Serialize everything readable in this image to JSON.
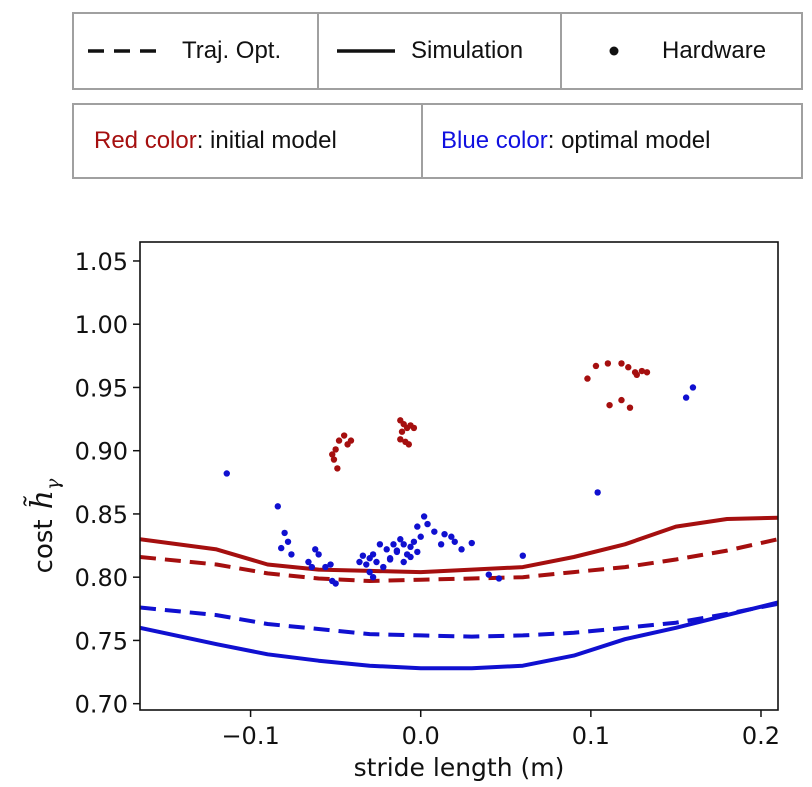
{
  "legend": {
    "items": [
      {
        "label": "Traj. Opt.",
        "style": "dashed"
      },
      {
        "label": "Simulation",
        "style": "solid"
      },
      {
        "label": "Hardware",
        "style": "dot"
      }
    ],
    "color_key": {
      "red_word": "Red color",
      "red_rest": ": initial model",
      "blue_word": "Blue color",
      "blue_rest": ": optimal model"
    }
  },
  "colors": {
    "initial": "#a50f0f",
    "optimal": "#1010d0",
    "text_red": "#a50f0f",
    "text_blue": "#1010e0"
  },
  "chart_data": {
    "type": "line",
    "title": "",
    "xlabel": "stride length (m)",
    "ylabel_prefix": "cost",
    "ylabel_symbol": "h̃",
    "ylabel_subscript": "γ",
    "xlim": [
      -0.165,
      0.21
    ],
    "ylim": [
      0.695,
      1.065
    ],
    "xticks": [
      -0.1,
      0.0,
      0.1,
      0.2
    ],
    "xtick_labels": [
      "−0.1",
      "0.0",
      "0.1",
      "0.2"
    ],
    "yticks": [
      0.7,
      0.75,
      0.8,
      0.85,
      0.9,
      0.95,
      1.0,
      1.05
    ],
    "ytick_labels": [
      "0.70",
      "0.75",
      "0.80",
      "0.85",
      "0.90",
      "0.95",
      "1.00",
      "1.05"
    ],
    "series": [
      {
        "name": "Simulation (initial model)",
        "model": "initial",
        "style": "solid",
        "x": [
          -0.165,
          -0.12,
          -0.09,
          -0.06,
          -0.03,
          0.0,
          0.03,
          0.06,
          0.09,
          0.12,
          0.15,
          0.18,
          0.21
        ],
        "y": [
          0.83,
          0.822,
          0.81,
          0.806,
          0.805,
          0.804,
          0.806,
          0.808,
          0.816,
          0.826,
          0.84,
          0.846,
          0.847
        ]
      },
      {
        "name": "Traj. Opt. (initial model)",
        "model": "initial",
        "style": "dashed",
        "x": [
          -0.165,
          -0.12,
          -0.09,
          -0.06,
          -0.03,
          0.0,
          0.03,
          0.06,
          0.09,
          0.12,
          0.15,
          0.18,
          0.21
        ],
        "y": [
          0.816,
          0.81,
          0.803,
          0.799,
          0.797,
          0.798,
          0.799,
          0.8,
          0.804,
          0.808,
          0.814,
          0.821,
          0.83
        ]
      },
      {
        "name": "Traj. Opt. (optimal model)",
        "model": "optimal",
        "style": "dashed",
        "x": [
          -0.165,
          -0.12,
          -0.09,
          -0.06,
          -0.03,
          0.0,
          0.03,
          0.06,
          0.09,
          0.12,
          0.15,
          0.18,
          0.21
        ],
        "y": [
          0.776,
          0.77,
          0.763,
          0.759,
          0.755,
          0.754,
          0.753,
          0.754,
          0.756,
          0.76,
          0.764,
          0.771,
          0.779
        ]
      },
      {
        "name": "Simulation (optimal model)",
        "model": "optimal",
        "style": "solid",
        "x": [
          -0.165,
          -0.12,
          -0.09,
          -0.06,
          -0.03,
          0.0,
          0.03,
          0.06,
          0.09,
          0.12,
          0.15,
          0.18,
          0.21
        ],
        "y": [
          0.76,
          0.747,
          0.739,
          0.734,
          0.73,
          0.728,
          0.728,
          0.73,
          0.738,
          0.751,
          0.76,
          0.77,
          0.78
        ]
      },
      {
        "name": "Hardware (initial model)",
        "model": "initial",
        "style": "dot",
        "x": [
          -0.052,
          -0.05,
          -0.048,
          -0.045,
          -0.043,
          -0.041,
          -0.051,
          -0.049,
          -0.012,
          -0.01,
          -0.008,
          -0.006,
          -0.004,
          -0.011,
          -0.009,
          -0.007,
          -0.012,
          0.098,
          0.103,
          0.11,
          0.118,
          0.122,
          0.126,
          0.13,
          0.111,
          0.118,
          0.123,
          0.127,
          0.133
        ],
        "y": [
          0.897,
          0.901,
          0.908,
          0.912,
          0.905,
          0.908,
          0.893,
          0.886,
          0.924,
          0.921,
          0.918,
          0.92,
          0.918,
          0.915,
          0.907,
          0.905,
          0.909,
          0.957,
          0.967,
          0.969,
          0.969,
          0.966,
          0.962,
          0.963,
          0.936,
          0.94,
          0.934,
          0.96,
          0.962
        ]
      },
      {
        "name": "Hardware (optimal model)",
        "model": "optimal",
        "style": "dot",
        "x": [
          -0.114,
          -0.084,
          -0.082,
          -0.08,
          -0.078,
          -0.076,
          -0.066,
          -0.064,
          -0.062,
          -0.06,
          -0.056,
          -0.053,
          -0.052,
          -0.05,
          -0.036,
          -0.034,
          -0.032,
          -0.03,
          -0.028,
          -0.026,
          -0.03,
          -0.028,
          -0.024,
          -0.02,
          -0.018,
          -0.016,
          -0.014,
          -0.012,
          -0.01,
          -0.008,
          -0.006,
          -0.004,
          -0.002,
          0.0,
          0.004,
          0.008,
          0.012,
          0.014,
          0.018,
          0.02,
          0.024,
          0.03,
          -0.022,
          -0.018,
          -0.014,
          -0.01,
          -0.006,
          -0.002,
          0.002,
          0.04,
          0.046,
          0.06,
          0.104,
          0.156,
          0.16
        ],
        "y": [
          0.882,
          0.856,
          0.823,
          0.835,
          0.828,
          0.818,
          0.812,
          0.808,
          0.822,
          0.818,
          0.808,
          0.81,
          0.797,
          0.795,
          0.812,
          0.817,
          0.81,
          0.815,
          0.818,
          0.812,
          0.804,
          0.8,
          0.826,
          0.822,
          0.814,
          0.826,
          0.821,
          0.83,
          0.812,
          0.818,
          0.824,
          0.828,
          0.82,
          0.832,
          0.842,
          0.836,
          0.826,
          0.834,
          0.832,
          0.828,
          0.822,
          0.827,
          0.808,
          0.815,
          0.82,
          0.826,
          0.816,
          0.84,
          0.848,
          0.802,
          0.799,
          0.817,
          0.867,
          0.942,
          0.95
        ]
      }
    ]
  }
}
